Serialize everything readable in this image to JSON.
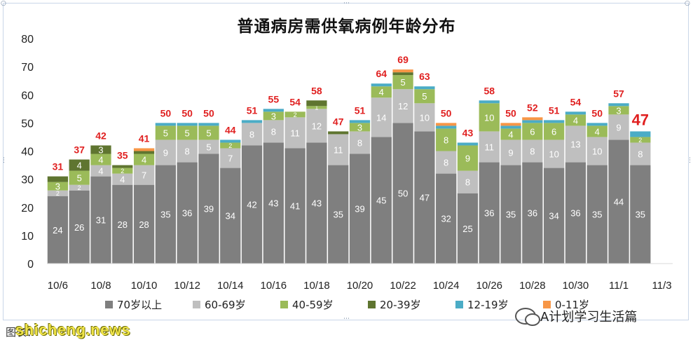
{
  "chart_data": {
    "type": "bar",
    "stacked": true,
    "title": "普通病房需供氧病例年龄分布",
    "ylim": [
      0,
      80
    ],
    "yticks": [
      0,
      10,
      20,
      30,
      40,
      50,
      60,
      70,
      80
    ],
    "grid": false,
    "legend_position": "bottom",
    "categories": [
      "10/6",
      "10/7",
      "10/8",
      "10/9",
      "10/10",
      "10/11",
      "10/12",
      "10/13",
      "10/14",
      "10/15",
      "10/16",
      "10/17",
      "10/18",
      "10/19",
      "10/20",
      "10/21",
      "10/22",
      "10/23",
      "10/24",
      "10/25",
      "10/26",
      "10/27",
      "10/28",
      "10/29",
      "10/30",
      "10/31",
      "11/1",
      "11/2"
    ],
    "xtick_labels": [
      "10/6",
      "10/8",
      "10/10",
      "10/12",
      "10/14",
      "10/16",
      "10/18",
      "10/20",
      "10/22",
      "10/24",
      "10/26",
      "10/28",
      "10/30",
      "11/1",
      "11/3"
    ],
    "totals": [
      31,
      37,
      42,
      35,
      41,
      50,
      50,
      50,
      44,
      51,
      55,
      54,
      58,
      47,
      51,
      64,
      69,
      63,
      50,
      43,
      58,
      50,
      52,
      51,
      54,
      50,
      57,
      47
    ],
    "series": [
      {
        "name": "70岁以上",
        "color": "#7f7f7f",
        "values": [
          24,
          26,
          31,
          28,
          28,
          35,
          36,
          39,
          34,
          42,
          43,
          41,
          43,
          35,
          39,
          45,
          50,
          47,
          32,
          25,
          36,
          35,
          36,
          34,
          36,
          35,
          44,
          35
        ]
      },
      {
        "name": "60-69岁",
        "color": "#bfbfbf",
        "values": [
          2,
          2,
          4,
          4,
          7,
          9,
          8,
          5,
          7,
          8,
          8,
          11,
          12,
          11,
          8,
          14,
          12,
          10,
          8,
          8,
          11,
          9,
          8,
          10,
          13,
          10,
          9,
          8
        ]
      },
      {
        "name": "40-59岁",
        "color": "#9bbb59",
        "values": [
          3,
          5,
          4,
          2,
          4,
          5,
          5,
          5,
          2,
          0,
          3,
          2,
          1,
          0,
          3,
          4,
          5,
          5,
          8,
          9,
          10,
          4,
          6,
          6,
          4,
          4,
          3,
          2
        ]
      },
      {
        "name": "20-39岁",
        "color": "#5f7530",
        "values": [
          2,
          4,
          3,
          1,
          1,
          0,
          0,
          0,
          0,
          0,
          0,
          0,
          2,
          1,
          0,
          0,
          1,
          0,
          0,
          0,
          0,
          0,
          0,
          0,
          0,
          0,
          0,
          0
        ]
      },
      {
        "name": "12-19岁",
        "color": "#4bacc6",
        "values": [
          0,
          0,
          0,
          0,
          0,
          1,
          1,
          1,
          1,
          1,
          1,
          0,
          0,
          0,
          1,
          1,
          0,
          1,
          1,
          1,
          1,
          1,
          1,
          1,
          1,
          1,
          1,
          2
        ]
      },
      {
        "name": "0-11岁",
        "color": "#f79646",
        "values": [
          0,
          0,
          0,
          0,
          1,
          0,
          0,
          0,
          0,
          0,
          0,
          0,
          0,
          0,
          0,
          0,
          1,
          0,
          1,
          0,
          0,
          1,
          1,
          0,
          0,
          0,
          0,
          0
        ]
      }
    ],
    "label_color": "#e02020",
    "last_label_highlight": true
  },
  "footer": {
    "note_prefix": "图表：",
    "watermark": "shicheng.news",
    "wechat_text": "A计划学习生活篇"
  }
}
